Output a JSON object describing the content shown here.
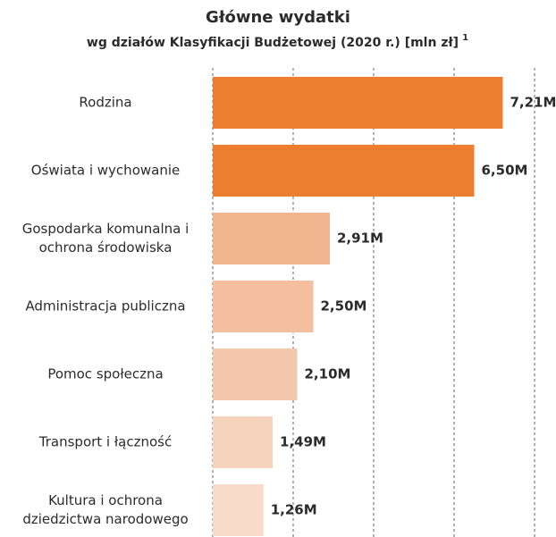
{
  "chart_data": {
    "type": "barh",
    "title": "Główne wydatki",
    "subtitle": "wg działów Klasyfikacji Budżetowej (2020 r.) [mln zł]",
    "subtitle_sup": "1",
    "categories": [
      "Rodzina",
      "Oświata i wychowanie",
      "Gospodarka komunalna i\nochrona środowiska",
      "Administracja publiczna",
      "Pomoc społeczna",
      "Transport i łączność",
      "Kultura i ochrona\ndziedzictwa narodowego"
    ],
    "values": [
      7.21,
      6.5,
      2.91,
      2.5,
      2.1,
      1.49,
      1.26
    ],
    "value_labels": [
      "7,21M",
      "6,50M",
      "2,91M",
      "2,50M",
      "2,10M",
      "1,49M",
      "1,26M"
    ],
    "colors": [
      "#ed7d31",
      "#ed7d31",
      "#f2b48e",
      "#f3bf9f",
      "#f4c8ac",
      "#f6d3bd",
      "#f7dac7"
    ],
    "xlim": [
      0,
      8
    ],
    "xticks": [
      0,
      2,
      4,
      6,
      8
    ],
    "grid": true
  }
}
